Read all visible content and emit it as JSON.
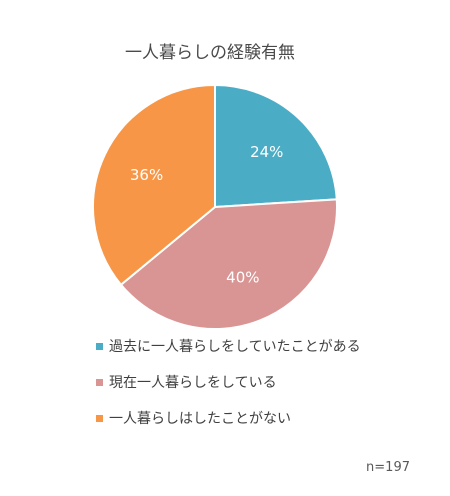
{
  "chart_data": {
    "type": "pie",
    "title": "一人暮らしの経験有無",
    "series": [
      {
        "name": "過去に一人暮らしをしていたことがある",
        "value": 24,
        "label": "24%",
        "color": "#4bacc6"
      },
      {
        "name": "現在一人暮らしをしている",
        "value": 40,
        "label": "40%",
        "color": "#d99594"
      },
      {
        "name": "一人暮らしはしたことがない",
        "value": 36,
        "label": "36%",
        "color": "#f79646"
      }
    ],
    "legend_position": "bottom",
    "note": "n=197"
  }
}
